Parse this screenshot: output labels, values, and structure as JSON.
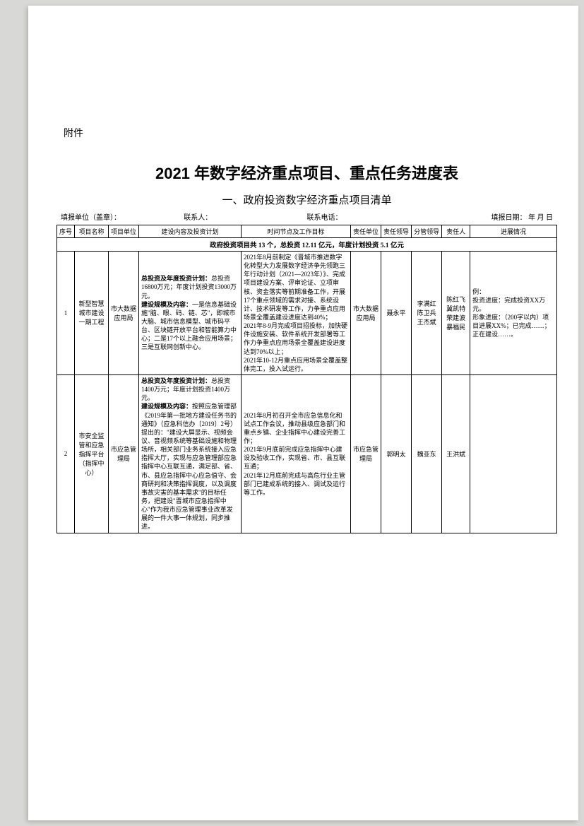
{
  "attachment_label": "附件",
  "title": "2021 年数字经济重点项目、重点任务进度表",
  "subtitle": "一、政府投资数字经济重点项目清单",
  "meta": {
    "report_unit_label": "填报单位（盖章）：",
    "contact_person_label": "联系人：",
    "contact_phone_label": "联系电话：",
    "report_date_label": "填报日期：    年  月  日"
  },
  "headers": {
    "seq": "序号",
    "project_name": "项目名称",
    "project_unit": "项目单位",
    "plan": "建设内容及投资计划",
    "goal": "时间节点及工作目标",
    "resp_unit": "责任单位",
    "resp_lead": "责任领导",
    "sub_lead": "分管领导",
    "resp_person": "责任人",
    "progress": "进展情况"
  },
  "summary_row": "政府投资项目共 13 个，总投资 12.11 亿元，年度计划投资 5.1 亿元",
  "rows": [
    {
      "seq": "1",
      "project_name": "新型智慧城市建设一期工程",
      "project_unit": "市大数据应用局",
      "plan_bold1": "总投资及年度投资计划：",
      "plan_text1": "总投资16800万元；年度计划投资13000万元。",
      "plan_bold2": "建设规模及内容：",
      "plan_text2": "一是信息基础设施\"脑、眼、码、链、芯\"，即城市大脑、城市信息模型、城市码平台、区块链开放平台和智能算力中心；二是17个以上融合应用场景；三是互联网创新中心。",
      "goal": "2021年8月前制定《晋城市推进数字化转型大力发展数字经济争先领跑三年行动计划（2021—2023年）》、完成项目建设方案、评审论证、立项审核、资金落实等前期准备工作，开展17个重点领域的需求对接、系统设计、技术研发等工作，力争重点应用场景全覆盖建设进度达到40%；\n2021年8-9月完成项目招投标，加快硬件设施安装、软件系统开发部署等工作力争重点应用场景全覆盖建设进度达到70%以上；\n2021年10-12月重点应用场景全覆盖整体完工，投入试运行。",
      "resp_unit": "市大数据应用局",
      "resp_lead": "聂永平",
      "sub_lead": "李满红\n陈卫兵\n王杰斌",
      "resp_person": "陈红飞\n冀凯特\n荣建波\n暴福民",
      "progress_label1": "例：",
      "progress_label2": "投资进度：",
      "progress_text2": "完成投资XX万元。",
      "progress_label3": "形象进度：",
      "progress_text3": "（200字以内）项目进展XX%；已完成……；正在建设……。"
    },
    {
      "seq": "2",
      "project_name": "市安全监管和应急指挥平台（指挥中心）",
      "project_unit": "市应急管理局",
      "plan_bold1": "总投资及年度投资计划：",
      "plan_text1": "总投资1400万元；年度计划投资1400万元。",
      "plan_bold2": "建设规模及内容：",
      "plan_text2": "按照应急管理部《2019年第一批地方建设任务书的通知》（应急科信办〔2019〕2号）提出的：\"建设大屏显示、视频会议、音视频系统等基础设施和物理场所，相关部门业务系统接入应急指挥大厅，实现与应急管理部应急指挥中心互联互通，满足部、省、市、县应急指挥中心应急值守、会商研判和决策指挥调度，以及调度事故灾害的基本需求\"的目标任务，把建设\"晋城市应急指挥中心\"作为我市应急管理事业改革发展的一件大事一体规划，同步推进。",
      "goal": "2021年8月初召开全市应急信息化和试点工作会议，推动县级应急部门和重点乡镇、企业指挥中心建设完善工作；\n2021年9月底前完成应急指挥中心建设及验收工作，实现省、市、县互联互通；\n2021年12月底前完成与高危行业主管部门已建成系统的接入、调试及运行等工作。",
      "resp_unit": "市应急管理局",
      "resp_lead": "郭明太",
      "sub_lead": "魏亚东",
      "resp_person": "王洪斌",
      "progress": ""
    }
  ]
}
